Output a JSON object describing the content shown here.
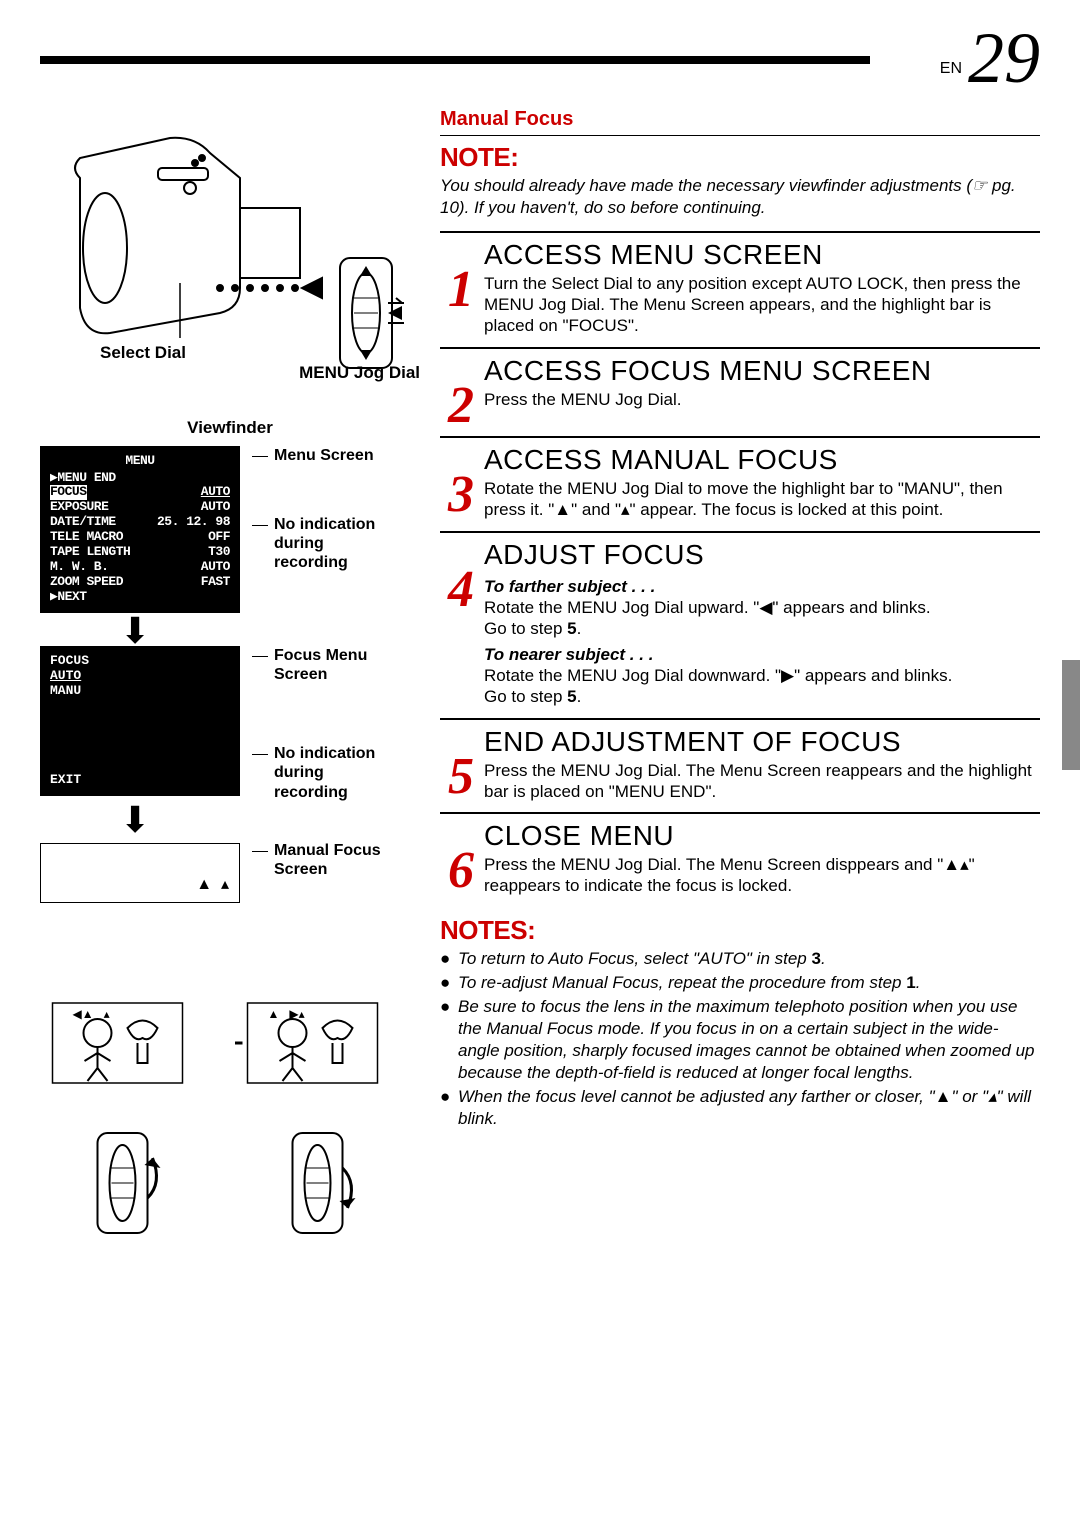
{
  "page": {
    "prefix": "EN",
    "number": "29"
  },
  "left": {
    "selectDial": "Select Dial",
    "menuJog": "MENU Jog Dial",
    "viewfinder": "Viewfinder",
    "menuScreenLabel": "Menu Screen",
    "noIndication1": "No indication during recording",
    "focusMenuLabel": "Focus Menu Screen",
    "noIndication2": "No indication during recording",
    "manualFocusLabel": "Manual Focus Screen",
    "menu": {
      "title": "MENU",
      "rows": [
        {
          "l": "▶MENU END",
          "r": ""
        },
        {
          "l": "FOCUS",
          "r": "AUTO",
          "hl": true
        },
        {
          "l": "EXPOSURE",
          "r": "AUTO"
        },
        {
          "l": "DATE/TIME",
          "r": "25. 12. 98"
        },
        {
          "l": "TELE MACRO",
          "r": "OFF"
        },
        {
          "l": "TAPE LENGTH",
          "r": "T30"
        },
        {
          "l": "M. W. B.",
          "r": "AUTO"
        },
        {
          "l": "ZOOM SPEED",
          "r": "FAST"
        },
        {
          "l": "▶NEXT",
          "r": ""
        }
      ]
    },
    "focusMenu": {
      "title": "FOCUS",
      "auto": "AUTO",
      "manu": "MANU",
      "exit": "EXIT"
    }
  },
  "right": {
    "title": "Manual Focus",
    "noteHeading": "NOTE:",
    "noteBody": "You should already have made the necessary viewfinder adjustments (☞ pg. 10). If you haven't, do so before continuing.",
    "steps": [
      {
        "num": "1",
        "heading": "ACCESS MENU SCREEN",
        "body": "Turn the Select Dial to any position except AUTO LOCK, then press the MENU Jog Dial. The Menu Screen appears, and the highlight bar is placed on \"FOCUS\"."
      },
      {
        "num": "2",
        "heading": "ACCESS FOCUS MENU SCREEN",
        "body": "Press the MENU Jog Dial."
      },
      {
        "num": "3",
        "heading": "ACCESS MANUAL FOCUS",
        "body": "Rotate the MENU Jog Dial to move the highlight bar to \"MANU\", then press it. \"▲\" and \"▴\" appear. The focus is locked at this point."
      },
      {
        "num": "4",
        "heading": "ADJUST FOCUS",
        "sub1h": "To farther subject . . .",
        "sub1b": "Rotate the MENU Jog Dial upward. \"◀\" appears and blinks.",
        "sub1c": "Go to step 5.",
        "sub2h": "To nearer subject . . .",
        "sub2b": "Rotate the MENU Jog Dial downward. \"▶\" appears and blinks.",
        "sub2c": "Go to step 5."
      },
      {
        "num": "5",
        "heading": "END ADJUSTMENT OF FOCUS",
        "body": "Press the MENU Jog Dial. The Menu Screen reappears and the highlight bar is placed on \"MENU END\"."
      },
      {
        "num": "6",
        "heading": "CLOSE MENU",
        "body": "Press the MENU Jog Dial. The Menu Screen disppears and \"▲▴\" reappears to indicate the focus is locked."
      }
    ],
    "notesHeading": "NOTES:",
    "notes": [
      "To return to Auto Focus, select \"AUTO\" in step 3.",
      "To re-adjust Manual Focus, repeat the procedure from step 1.",
      "Be sure to focus the lens in the maximum telephoto position when you use the Manual Focus mode. If you focus in on a certain subject in the wide-angle position, sharply focused images cannot be obtained when zoomed up because the depth-of-field is reduced at longer focal lengths.",
      "When the focus level cannot be adjusted any farther or closer, \"▲\" or \"▴\" will blink."
    ]
  },
  "colors": {
    "accent": "#cc0000"
  }
}
